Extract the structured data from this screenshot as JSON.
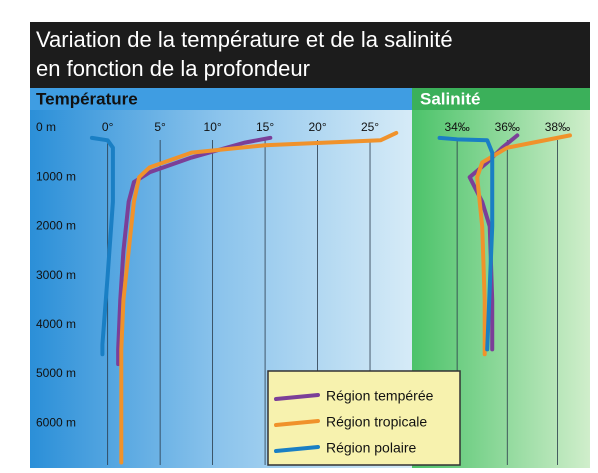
{
  "title": [
    "Variation de la température et de la salinité",
    "en fonction de la profondeur"
  ],
  "chart_data": [
    {
      "type": "line",
      "title": "Température",
      "xlim": [
        -7.4,
        29
      ],
      "ylim": [
        0,
        6850
      ],
      "xticks": [
        {
          "value": 0,
          "label": "0°"
        },
        {
          "value": 5,
          "label": "5°"
        },
        {
          "value": 10,
          "label": "10°"
        },
        {
          "value": 15,
          "label": "15°"
        },
        {
          "value": 20,
          "label": "20°"
        },
        {
          "value": 25,
          "label": "25°"
        }
      ],
      "yticks": [
        {
          "value": 0,
          "label": "0 m"
        },
        {
          "value": 1000,
          "label": "1000 m"
        },
        {
          "value": 2000,
          "label": "2000 m"
        },
        {
          "value": 3000,
          "label": "3000 m"
        },
        {
          "value": 4000,
          "label": "4000 m"
        },
        {
          "value": 5000,
          "label": "5000 m"
        },
        {
          "value": 6000,
          "label": "6000 m"
        }
      ],
      "grid": true,
      "series": [
        {
          "name": "Région tempérée",
          "color": "#7b3f98",
          "values": [
            15.5,
            13,
            8,
            4,
            2.5,
            2,
            1.5,
            1.2,
            1,
            1
          ],
          "depths": [
            200,
            300,
            600,
            900,
            1100,
            1500,
            2500,
            3500,
            4500,
            4800
          ]
        },
        {
          "name": "Région tropicale",
          "color": "#f0922b",
          "values": [
            27.5,
            26,
            15,
            8,
            4,
            3,
            2.5,
            2,
            1.5,
            1.3,
            1.3
          ],
          "depths": [
            100,
            250,
            350,
            500,
            800,
            1000,
            1500,
            2500,
            3500,
            4500,
            6800
          ]
        },
        {
          "name": "Région polaire",
          "color": "#1a7fc4",
          "values": [
            -1.5,
            0,
            0.5,
            0.5,
            0,
            -0.5,
            -0.5
          ],
          "depths": [
            200,
            250,
            400,
            1500,
            3000,
            4400,
            4600
          ]
        }
      ]
    },
    {
      "type": "line",
      "title": "Salinité",
      "xlim": [
        32.2,
        39.3
      ],
      "ylim": [
        0,
        6850
      ],
      "xticks": [
        {
          "value": 34,
          "label": "34‰"
        },
        {
          "value": 36,
          "label": "36‰"
        },
        {
          "value": 38,
          "label": "38‰"
        }
      ],
      "grid": true,
      "series": [
        {
          "name": "Région tempérée",
          "color": "#7b3f98",
          "values": [
            36.4,
            35.8,
            35.2,
            34.5,
            35,
            35.3,
            35.4,
            35.4
          ],
          "depths": [
            150,
            400,
            700,
            1000,
            1500,
            2000,
            3500,
            4500
          ]
        },
        {
          "name": "Région tropicale",
          "color": "#f0922b",
          "values": [
            38.5,
            37,
            36,
            35,
            34.8,
            35,
            35.1,
            35.1
          ],
          "depths": [
            150,
            300,
            400,
            700,
            1000,
            2000,
            3500,
            4600
          ]
        },
        {
          "name": "Région polaire",
          "color": "#1a7fc4",
          "values": [
            33.3,
            34,
            35.2,
            35.4,
            35.4,
            35.2
          ],
          "depths": [
            200,
            230,
            250,
            500,
            2000,
            4500
          ]
        }
      ]
    }
  ]
}
